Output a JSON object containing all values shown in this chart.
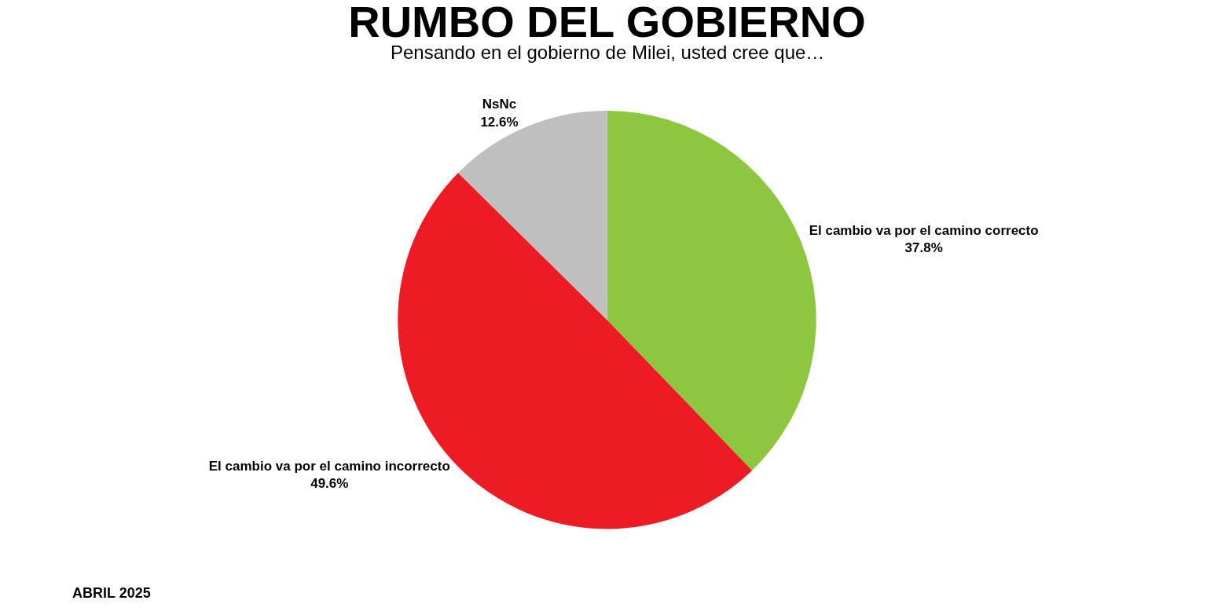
{
  "chart_data": {
    "type": "pie",
    "title": "RUMBO DEL GOBIERNO",
    "subtitle": "Pensando en el gobierno de Milei, usted cree que…",
    "categories": [
      "El cambio va por el camino correcto",
      "El cambio va por el camino incorrecto",
      "NsNc"
    ],
    "values": [
      37.8,
      49.6,
      12.6
    ],
    "value_labels": [
      "37.8%",
      "49.6%",
      "12.6%"
    ],
    "colors": [
      "#8dc63f",
      "#ed1c24",
      "#bfbfbf"
    ],
    "legend": false,
    "annotations": [
      "ABRIL 2025"
    ]
  }
}
